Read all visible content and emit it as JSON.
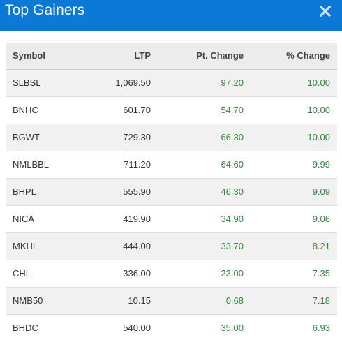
{
  "header": {
    "title": "Top Gainers",
    "close_icon": "close-icon",
    "background": "#0d79d6"
  },
  "table": {
    "columns": [
      "Symbol",
      "LTP",
      "Pt. Change",
      "% Change"
    ],
    "rows": [
      {
        "symbol": "SLBSL",
        "ltp": "1,069.50",
        "pt_change": "97.20",
        "pct_change": "10.00"
      },
      {
        "symbol": "BNHC",
        "ltp": "601.70",
        "pt_change": "54.70",
        "pct_change": "10.00"
      },
      {
        "symbol": "BGWT",
        "ltp": "729.30",
        "pt_change": "66.30",
        "pct_change": "10.00"
      },
      {
        "symbol": "NMLBBL",
        "ltp": "711.20",
        "pt_change": "64.60",
        "pct_change": "9.99"
      },
      {
        "symbol": "BHPL",
        "ltp": "555.90",
        "pt_change": "46.30",
        "pct_change": "9.09"
      },
      {
        "symbol": "NICA",
        "ltp": "419.90",
        "pt_change": "34.90",
        "pct_change": "9.06"
      },
      {
        "symbol": "MKHL",
        "ltp": "444.00",
        "pt_change": "33.70",
        "pct_change": "8.21"
      },
      {
        "symbol": "CHL",
        "ltp": "336.00",
        "pt_change": "23.00",
        "pct_change": "7.35"
      },
      {
        "symbol": "NMB50",
        "ltp": "10.15",
        "pt_change": "0.68",
        "pct_change": "7.18"
      },
      {
        "symbol": "BHDC",
        "ltp": "540.00",
        "pt_change": "35.00",
        "pct_change": "6.93"
      }
    ],
    "positive_color": "#2e8b3a"
  }
}
